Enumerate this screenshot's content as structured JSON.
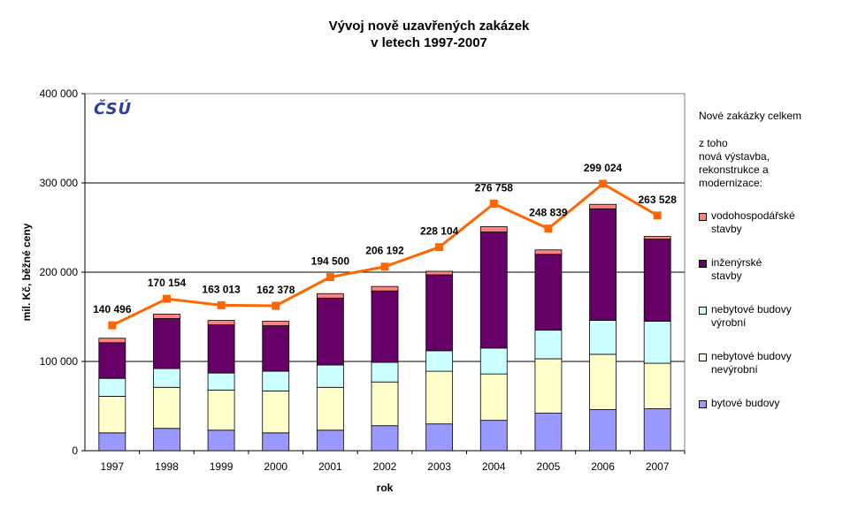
{
  "title": {
    "line1": "Vývoj nově uzavřených zakázek",
    "line2": "v letech 1997-2007"
  },
  "logo": "ČSÚ",
  "colors": {
    "bytove": "#9999ff",
    "nevyrobni": "#ffffcc",
    "vyrobni": "#ccffff",
    "inzenyrske": "#660066",
    "vodohospodarske": "#ff8080",
    "total_line": "#ff6600"
  },
  "chart_data": {
    "type": "bar",
    "stacked": true,
    "categories": [
      "1997",
      "1998",
      "1999",
      "2000",
      "2001",
      "2002",
      "2003",
      "2004",
      "2005",
      "2006",
      "2007"
    ],
    "xlabel": "rok",
    "ylabel": "mil. Kč, běžné ceny",
    "ylim": [
      0,
      400000
    ],
    "yticks": [
      0,
      100000,
      200000,
      300000,
      400000
    ],
    "ytick_labels": [
      "0",
      "100 000",
      "200 000",
      "300 000",
      "400 000"
    ],
    "grid": true,
    "series": [
      {
        "name": "bytové budovy",
        "key": "bytove",
        "values": [
          20000,
          25000,
          23000,
          20000,
          23000,
          28000,
          30000,
          34000,
          42000,
          46000,
          47000
        ]
      },
      {
        "name": "nebytové budovy nevýrobní",
        "key": "nevyrobni",
        "values": [
          41000,
          46000,
          45000,
          47000,
          48000,
          49000,
          59000,
          52000,
          61000,
          62000,
          51000
        ]
      },
      {
        "name": "nebytové budovy výrobní",
        "key": "vyrobni",
        "values": [
          20000,
          21000,
          19000,
          22000,
          25000,
          22000,
          23000,
          29000,
          32000,
          38000,
          47000
        ]
      },
      {
        "name": "inženýrské stavby",
        "key": "inzenyrske",
        "values": [
          40000,
          56000,
          54000,
          51000,
          75000,
          80000,
          85000,
          130000,
          85000,
          125000,
          92000
        ]
      },
      {
        "name": "vodohospodářské stavby",
        "key": "vodohospodarske",
        "values": [
          5000,
          5000,
          5000,
          5000,
          5000,
          5000,
          4000,
          6000,
          5000,
          5000,
          3000
        ]
      }
    ],
    "total_line": {
      "name": "Nové zakázky celkem",
      "values": [
        140496,
        170154,
        163013,
        162378,
        194500,
        206192,
        228104,
        276758,
        248839,
        299024,
        263528
      ],
      "labels": [
        "140 496",
        "170 154",
        "163 013",
        "162 378",
        "194 500",
        "206 192",
        "228 104",
        "276 758",
        "248 839",
        "299 024",
        "263 528"
      ]
    }
  },
  "legend": {
    "total": "Nové zakázky celkem",
    "subheader": [
      "z toho",
      "nová výstavba,",
      "rekonstrukce a",
      "modernizace:"
    ],
    "entries": [
      {
        "key": "vodohospodarske",
        "lines": [
          "vodohospodářské",
          "stavby"
        ]
      },
      {
        "key": "inzenyrske",
        "lines": [
          "inženýrské",
          "stavby"
        ]
      },
      {
        "key": "vyrobni",
        "lines": [
          "nebytové budovy",
          "výrobní"
        ]
      },
      {
        "key": "nevyrobni",
        "lines": [
          "nebytové budovy",
          "nevýrobní"
        ]
      },
      {
        "key": "bytove",
        "lines": [
          "bytové budovy"
        ]
      }
    ]
  }
}
